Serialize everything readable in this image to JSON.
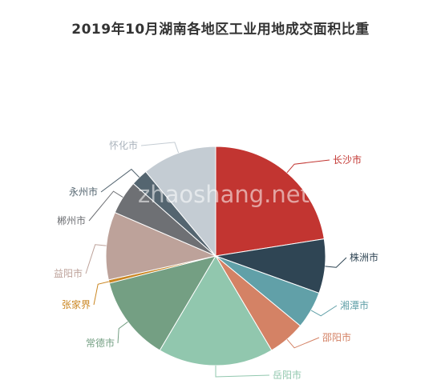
{
  "chart_data": {
    "type": "pie",
    "title": "2019年10月湖南各地区工业用地成交面积比重",
    "start_angle_deg": 90,
    "direction": "clockwise",
    "slices": [
      {
        "name": "长沙市",
        "value": 22.5,
        "color": "#c23531"
      },
      {
        "name": "株洲市",
        "value": 8.0,
        "color": "#2f4554"
      },
      {
        "name": "湘潭市",
        "value": 5.5,
        "color": "#61a0a8"
      },
      {
        "name": "邵阳市",
        "value": 5.5,
        "color": "#d48265"
      },
      {
        "name": "岳阳市",
        "value": 17.0,
        "color": "#91c7ae"
      },
      {
        "name": "常德市",
        "value": 12.5,
        "color": "#749f83"
      },
      {
        "name": "张家界",
        "value": 0.5,
        "color": "#ca8622"
      },
      {
        "name": "益阳市",
        "value": 10.0,
        "color": "#bda29a"
      },
      {
        "name": "郴州市",
        "value": 5.0,
        "color": "#6e7074"
      },
      {
        "name": "永州市",
        "value": 2.5,
        "color": "#546570"
      },
      {
        "name": "怀化市",
        "value": 11.0,
        "color": "#c4ccd3"
      }
    ]
  },
  "watermark": "zhaoshang.net"
}
